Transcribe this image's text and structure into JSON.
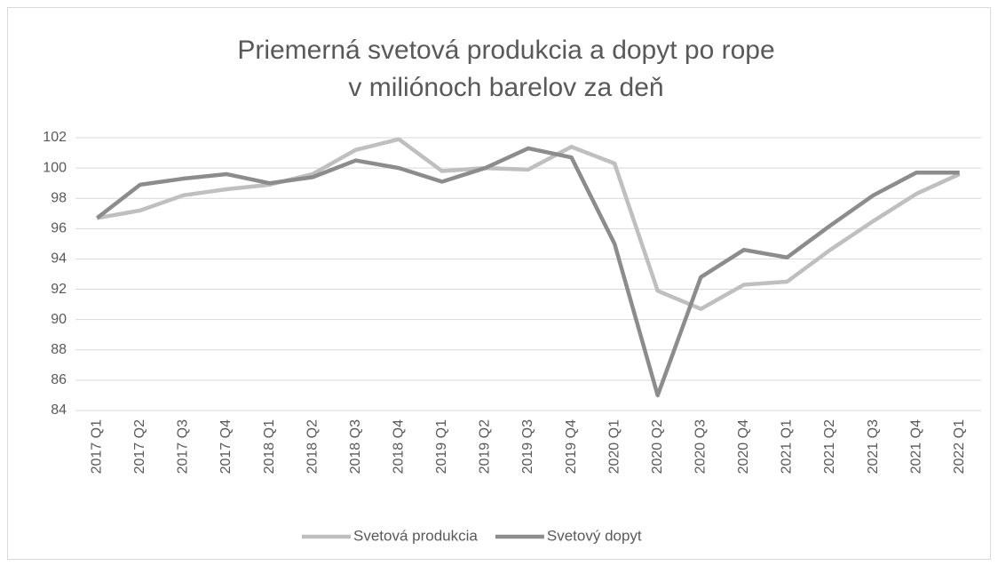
{
  "chart_data": {
    "type": "line",
    "title": [
      "Priemerná svetová produkcia a dopyt po rope",
      "v miliónoch barelov za deň"
    ],
    "categories": [
      "2017 Q1",
      "2017 Q2",
      "2017 Q3",
      "2017 Q4",
      "2018 Q1",
      "2018 Q2",
      "2018 Q3",
      "2018 Q4",
      "2019 Q1",
      "2019 Q2",
      "2019 Q3",
      "2019 Q4",
      "2020 Q1",
      "2020 Q2",
      "2020 Q3",
      "2020 Q4",
      "2021 Q1",
      "2021 Q2",
      "2021 Q3",
      "2021 Q4",
      "2022 Q1"
    ],
    "series": [
      {
        "name": "Svetová produkcia",
        "color": "#bfbfbf",
        "values": [
          96.7,
          97.2,
          98.2,
          98.6,
          98.9,
          99.6,
          101.2,
          101.9,
          99.8,
          100.0,
          99.9,
          101.4,
          100.3,
          91.9,
          90.7,
          92.3,
          92.5,
          94.6,
          96.5,
          98.3,
          99.6
        ]
      },
      {
        "name": "Svetový dopyt",
        "color": "#8c8c8c",
        "values": [
          96.7,
          98.9,
          99.3,
          99.6,
          99.0,
          99.4,
          100.5,
          100.0,
          99.1,
          100.0,
          101.3,
          100.7,
          95.0,
          85.0,
          92.8,
          94.6,
          94.1,
          96.2,
          98.2,
          99.7,
          99.7
        ]
      }
    ],
    "ylim": [
      84,
      102
    ],
    "yticks": [
      84,
      86,
      88,
      90,
      92,
      94,
      96,
      98,
      100,
      102
    ],
    "grid": true
  }
}
